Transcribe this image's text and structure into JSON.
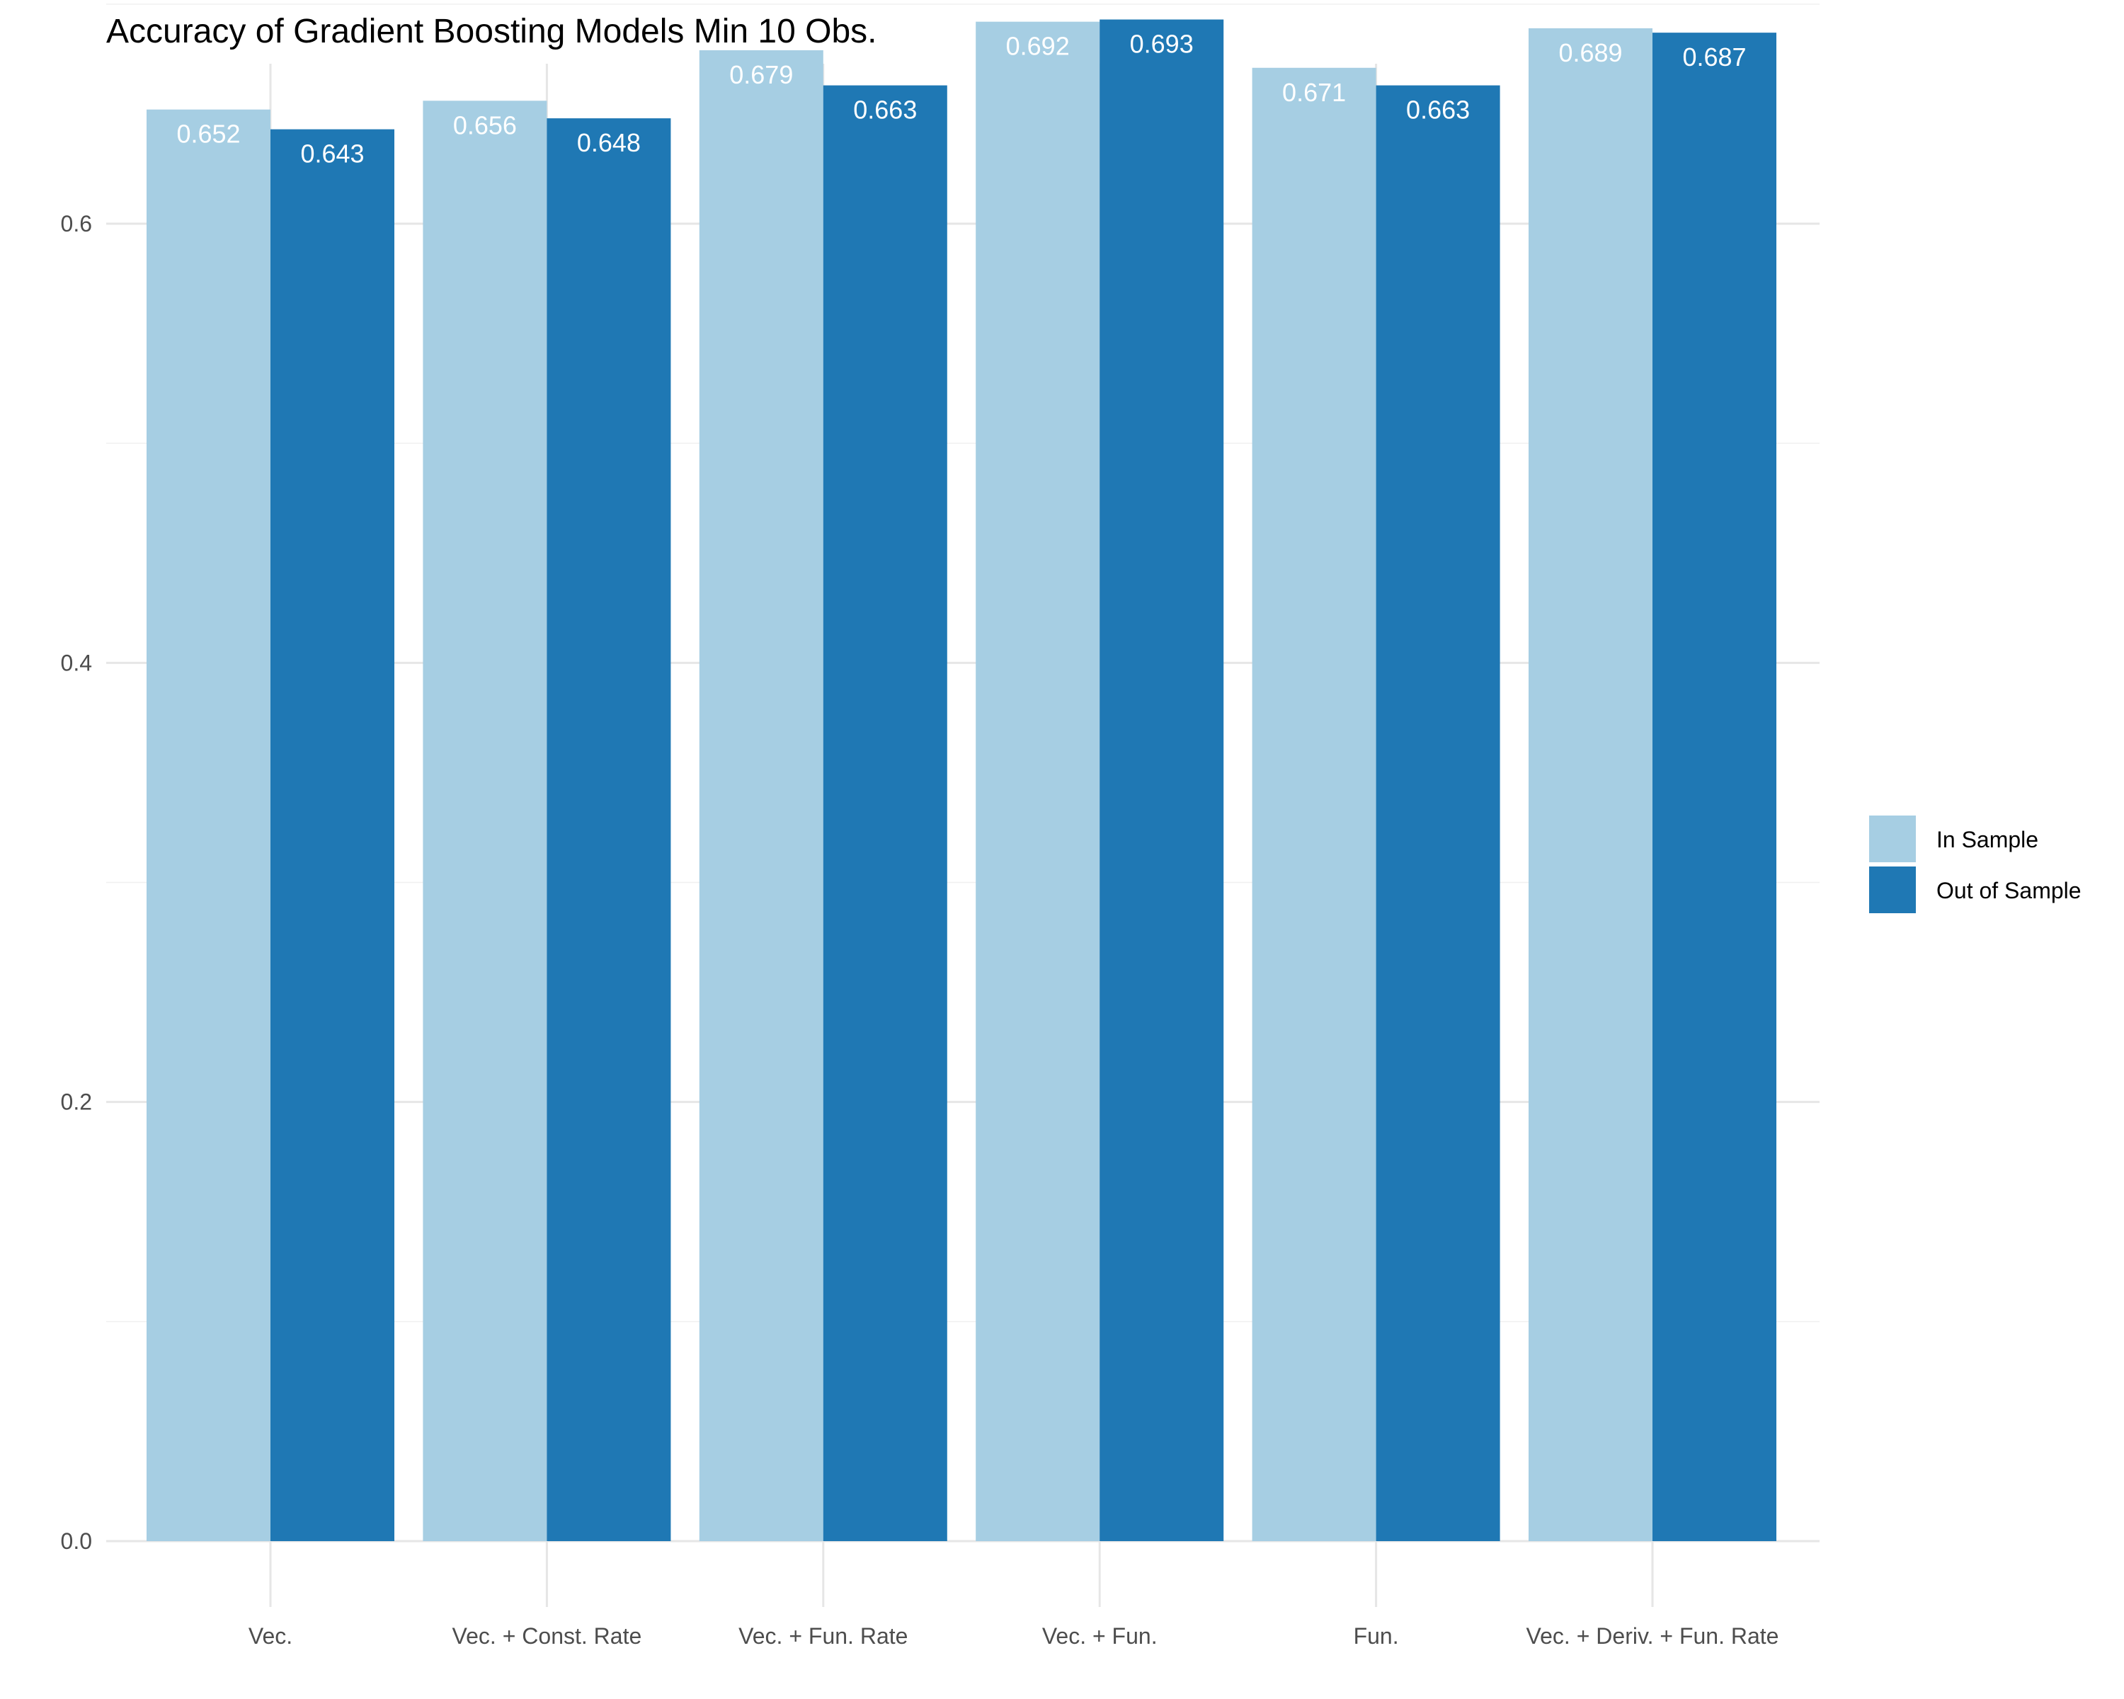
{
  "chart_data": {
    "type": "bar",
    "title": "Accuracy of Gradient Boosting Models Min 10 Obs.",
    "xlabel": "",
    "ylabel": "",
    "categories": [
      "Vec.",
      "Vec. + Const. Rate",
      "Vec. + Fun. Rate",
      "Vec. + Fun.",
      "Fun.",
      "Vec. + Deriv. + Fun. Rate"
    ],
    "series": [
      {
        "name": "In Sample",
        "color": "#a6cee3",
        "values": [
          0.652,
          0.656,
          0.679,
          0.692,
          0.671,
          0.689
        ],
        "labels": [
          "0.652",
          "0.656",
          "0.679",
          "0.692",
          "0.671",
          "0.689"
        ]
      },
      {
        "name": "Out of Sample",
        "color": "#1f78b4",
        "values": [
          0.643,
          0.648,
          0.663,
          0.693,
          0.663,
          0.687
        ],
        "labels": [
          "0.643",
          "0.648",
          "0.663",
          "0.693",
          "0.663",
          "0.687"
        ]
      }
    ],
    "ylim": [
      0,
      0.7
    ],
    "y_ticks": [
      0.0,
      0.2,
      0.4,
      0.6
    ],
    "y_tick_labels": [
      "0.0",
      "0.2",
      "0.4",
      "0.6"
    ],
    "y_minor_ticks": [
      0.1,
      0.3,
      0.5,
      0.7
    ],
    "grid": true,
    "legend_position": "right"
  }
}
